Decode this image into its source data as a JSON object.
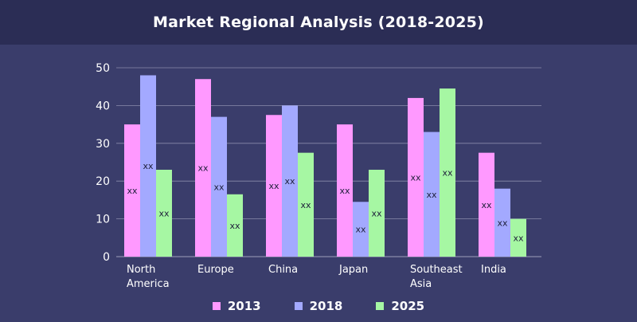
{
  "header": {
    "title": "Market Regional Analysis (2018-2025)"
  },
  "chart_data": {
    "type": "bar",
    "title": "Market Regional Analysis (2018-2025)",
    "categories": [
      [
        "North",
        "America"
      ],
      [
        "Europe"
      ],
      [
        "China"
      ],
      [
        "Japan"
      ],
      [
        "Southeast",
        "Asia"
      ],
      [
        "India"
      ]
    ],
    "series": [
      {
        "name": "2013",
        "color": "#ff99ff",
        "values": [
          35,
          47,
          37.5,
          35,
          42,
          27.5
        ],
        "labels": [
          "xx",
          "xx",
          "xx",
          "xx",
          "xx",
          "xx"
        ]
      },
      {
        "name": "2018",
        "color": "#a3a9ff",
        "values": [
          48,
          37,
          40,
          14.5,
          33,
          18
        ],
        "labels": [
          "xx",
          "xx",
          "xx",
          "xx",
          "xx",
          "xx"
        ]
      },
      {
        "name": "2025",
        "color": "#a6f7a3",
        "values": [
          23,
          16.5,
          27.5,
          23,
          44.5,
          10
        ],
        "labels": [
          "xx",
          "xx",
          "xx",
          "xx",
          "xx",
          "xx"
        ]
      }
    ],
    "yticks": [
      0,
      10,
      20,
      30,
      40,
      50
    ],
    "ylim": [
      0,
      50
    ],
    "xlabel": "",
    "ylabel": "",
    "grid": true,
    "legend": "bottom-center"
  }
}
